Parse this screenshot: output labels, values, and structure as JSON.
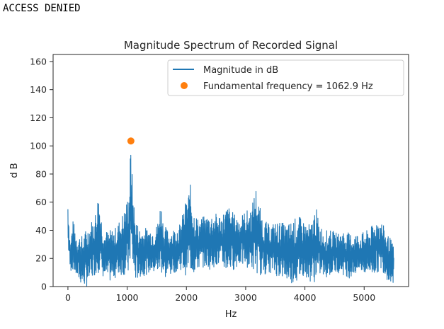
{
  "console": {
    "output_text": "ACCESS DENIED"
  },
  "chart_data": {
    "type": "line",
    "title": "Magnitude Spectrum of Recorded Signal",
    "xlabel": "Hz",
    "ylabel": "d B",
    "xlim": [
      -250,
      5750
    ],
    "ylim": [
      0,
      165
    ],
    "xticks": [
      0,
      1000,
      2000,
      3000,
      4000,
      5000
    ],
    "yticks": [
      0,
      20,
      40,
      60,
      80,
      100,
      120,
      140,
      160
    ],
    "grid": false,
    "legend_position": "top-right",
    "series": [
      {
        "name": "Magnitude in dB",
        "color": "#1f77b4",
        "kind": "line",
        "envelope": {
          "x": [
            0,
            40,
            80,
            150,
            250,
            350,
            450,
            520,
            560,
            620,
            700,
            800,
            900,
            980,
            1030,
            1062.9,
            1090,
            1130,
            1200,
            1300,
            1400,
            1500,
            1570,
            1620,
            1700,
            1800,
            1900,
            1980,
            2070,
            2120,
            2200,
            2300,
            2400,
            2500,
            2600,
            2700,
            2800,
            2900,
            3000,
            3100,
            3170,
            3230,
            3300,
            3400,
            3500,
            3600,
            3700,
            3800,
            3900,
            4000,
            4100,
            4180,
            4250,
            4350,
            4450,
            4550,
            4650,
            4750,
            4850,
            4950,
            5050,
            5150,
            5230,
            5300,
            5380,
            5450,
            5500
          ],
          "upper": [
            63,
            30,
            48,
            38,
            36,
            45,
            50,
            69,
            52,
            40,
            40,
            42,
            50,
            58,
            72,
            103,
            75,
            52,
            42,
            42,
            42,
            44,
            62,
            44,
            40,
            42,
            45,
            60,
            73,
            56,
            48,
            50,
            52,
            52,
            52,
            58,
            52,
            50,
            54,
            56,
            72,
            58,
            48,
            44,
            46,
            46,
            44,
            48,
            50,
            46,
            44,
            58,
            44,
            40,
            40,
            38,
            40,
            38,
            38,
            38,
            40,
            44,
            50,
            46,
            38,
            34,
            28
          ],
          "lower": [
            28,
            10,
            12,
            5,
            0,
            0,
            8,
            10,
            8,
            5,
            3,
            6,
            8,
            8,
            5,
            22,
            12,
            3,
            6,
            8,
            10,
            8,
            10,
            5,
            7,
            10,
            12,
            8,
            10,
            8,
            12,
            14,
            12,
            15,
            12,
            10,
            12,
            15,
            14,
            12,
            10,
            8,
            8,
            10,
            8,
            6,
            4,
            2,
            4,
            8,
            3,
            3,
            8,
            6,
            8,
            10,
            8,
            6,
            8,
            10,
            8,
            8,
            10,
            12,
            5,
            3,
            0
          ]
        }
      },
      {
        "name": "Fundamental frequency = 1062.9 Hz",
        "color": "#ff7f0e",
        "kind": "point",
        "x": [
          1062.9
        ],
        "y": [
          103.5
        ]
      }
    ]
  }
}
